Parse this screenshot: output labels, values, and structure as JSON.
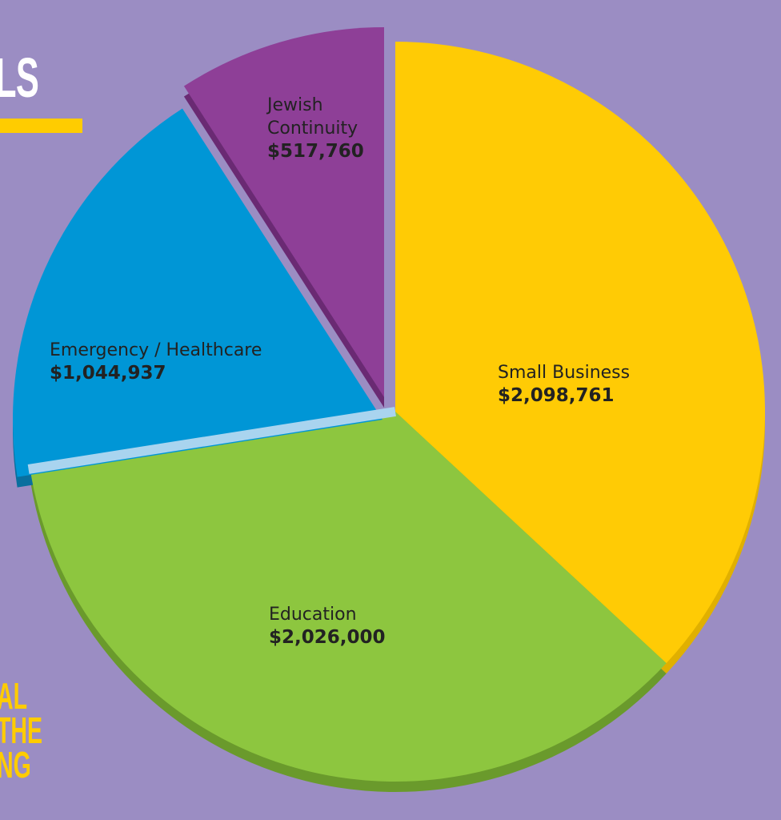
{
  "page": {
    "heading_fragment": "LS",
    "side_text_lines": [
      "AL",
      "THE",
      "NG"
    ],
    "background_color": "#9b8dc3",
    "accent_color": "#ffcc00"
  },
  "chart_data": {
    "type": "pie",
    "title": "",
    "slices": [
      {
        "label": "Small Business",
        "value_label": "$2,098,761",
        "value": 2098761,
        "color": "#ffcb05",
        "side_color": "#e0b000"
      },
      {
        "label": "Education",
        "value_label": "$2,026,000",
        "value": 2026000,
        "color": "#8dc63f",
        "side_color": "#6a9a2c"
      },
      {
        "label": "Emergency / Healthcare",
        "value_label": "$1,044,937",
        "value": 1044937,
        "color": "#0096d6",
        "side_color": "#0a6f9e"
      },
      {
        "label": "Jewish Continuity",
        "value_label": "$517,760",
        "value": 517760,
        "color": "#8e3f97",
        "side_color": "#6a2a73"
      }
    ]
  }
}
